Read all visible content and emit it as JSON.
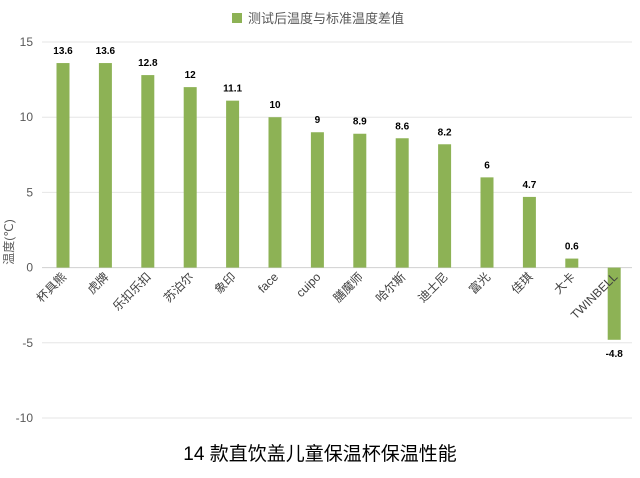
{
  "chart_data": {
    "type": "bar",
    "title": "14 款直饮盖儿童保温杯保温性能",
    "legend": "测试后温度与标准温度差值",
    "ylabel": "温度(℃)",
    "xlabel": "",
    "ylim": [
      -10,
      15
    ],
    "yticks": [
      15,
      10,
      5,
      0,
      -5,
      -10
    ],
    "grid": true,
    "legend_position": "top",
    "bar_color": "#8db255",
    "categories": [
      "杯具熊",
      "虎牌",
      "乐扣乐扣",
      "苏泊尔",
      "象印",
      "face",
      "cuipo",
      "膳魔师",
      "哈尔斯",
      "迪士尼",
      "富光",
      "佳琪",
      "大卡",
      "TWINBELL"
    ],
    "series": [
      {
        "name": "测试后温度与标准温度差值",
        "values": [
          13.6,
          13.6,
          12.8,
          12,
          11.1,
          10,
          9,
          8.9,
          8.6,
          8.2,
          6,
          4.7,
          0.6,
          -4.8
        ],
        "labels": [
          "13.6",
          "13.6",
          "12.8",
          "12",
          "11.1",
          "10",
          "9",
          "8.9",
          "8.6",
          "8.2",
          "6",
          "4.7",
          "0.6",
          "-4.8"
        ]
      }
    ]
  }
}
